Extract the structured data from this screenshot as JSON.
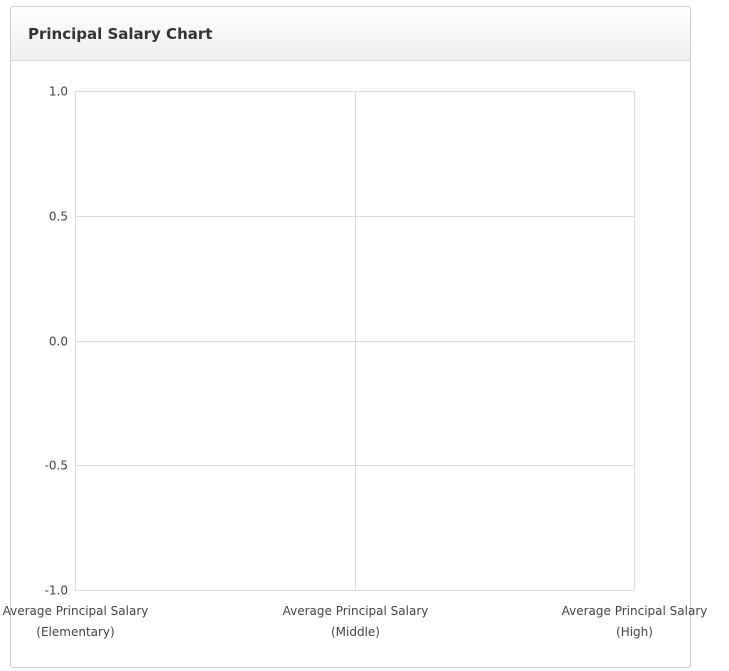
{
  "panel": {
    "title": "Principal Salary Chart"
  },
  "chart_data": {
    "type": "line",
    "title": "Principal Salary Chart",
    "xlabel": "",
    "ylabel": "",
    "categories": [
      [
        "Average Principal Salary",
        "(Elementary)"
      ],
      [
        "Average Principal Salary",
        "(Middle)"
      ],
      [
        "Average Principal Salary",
        "(High)"
      ]
    ],
    "series": [],
    "ylim": [
      -1.0,
      1.0
    ],
    "yticks": [
      "1.0",
      "0.5",
      "0.0",
      "-0.5",
      "-1.0"
    ],
    "ytick_values": [
      1.0,
      0.5,
      0.0,
      -0.5,
      -1.0
    ],
    "grid": true
  },
  "colors": {
    "grid": "#dddddd",
    "axis": "#cccccc",
    "text": "#444444"
  }
}
